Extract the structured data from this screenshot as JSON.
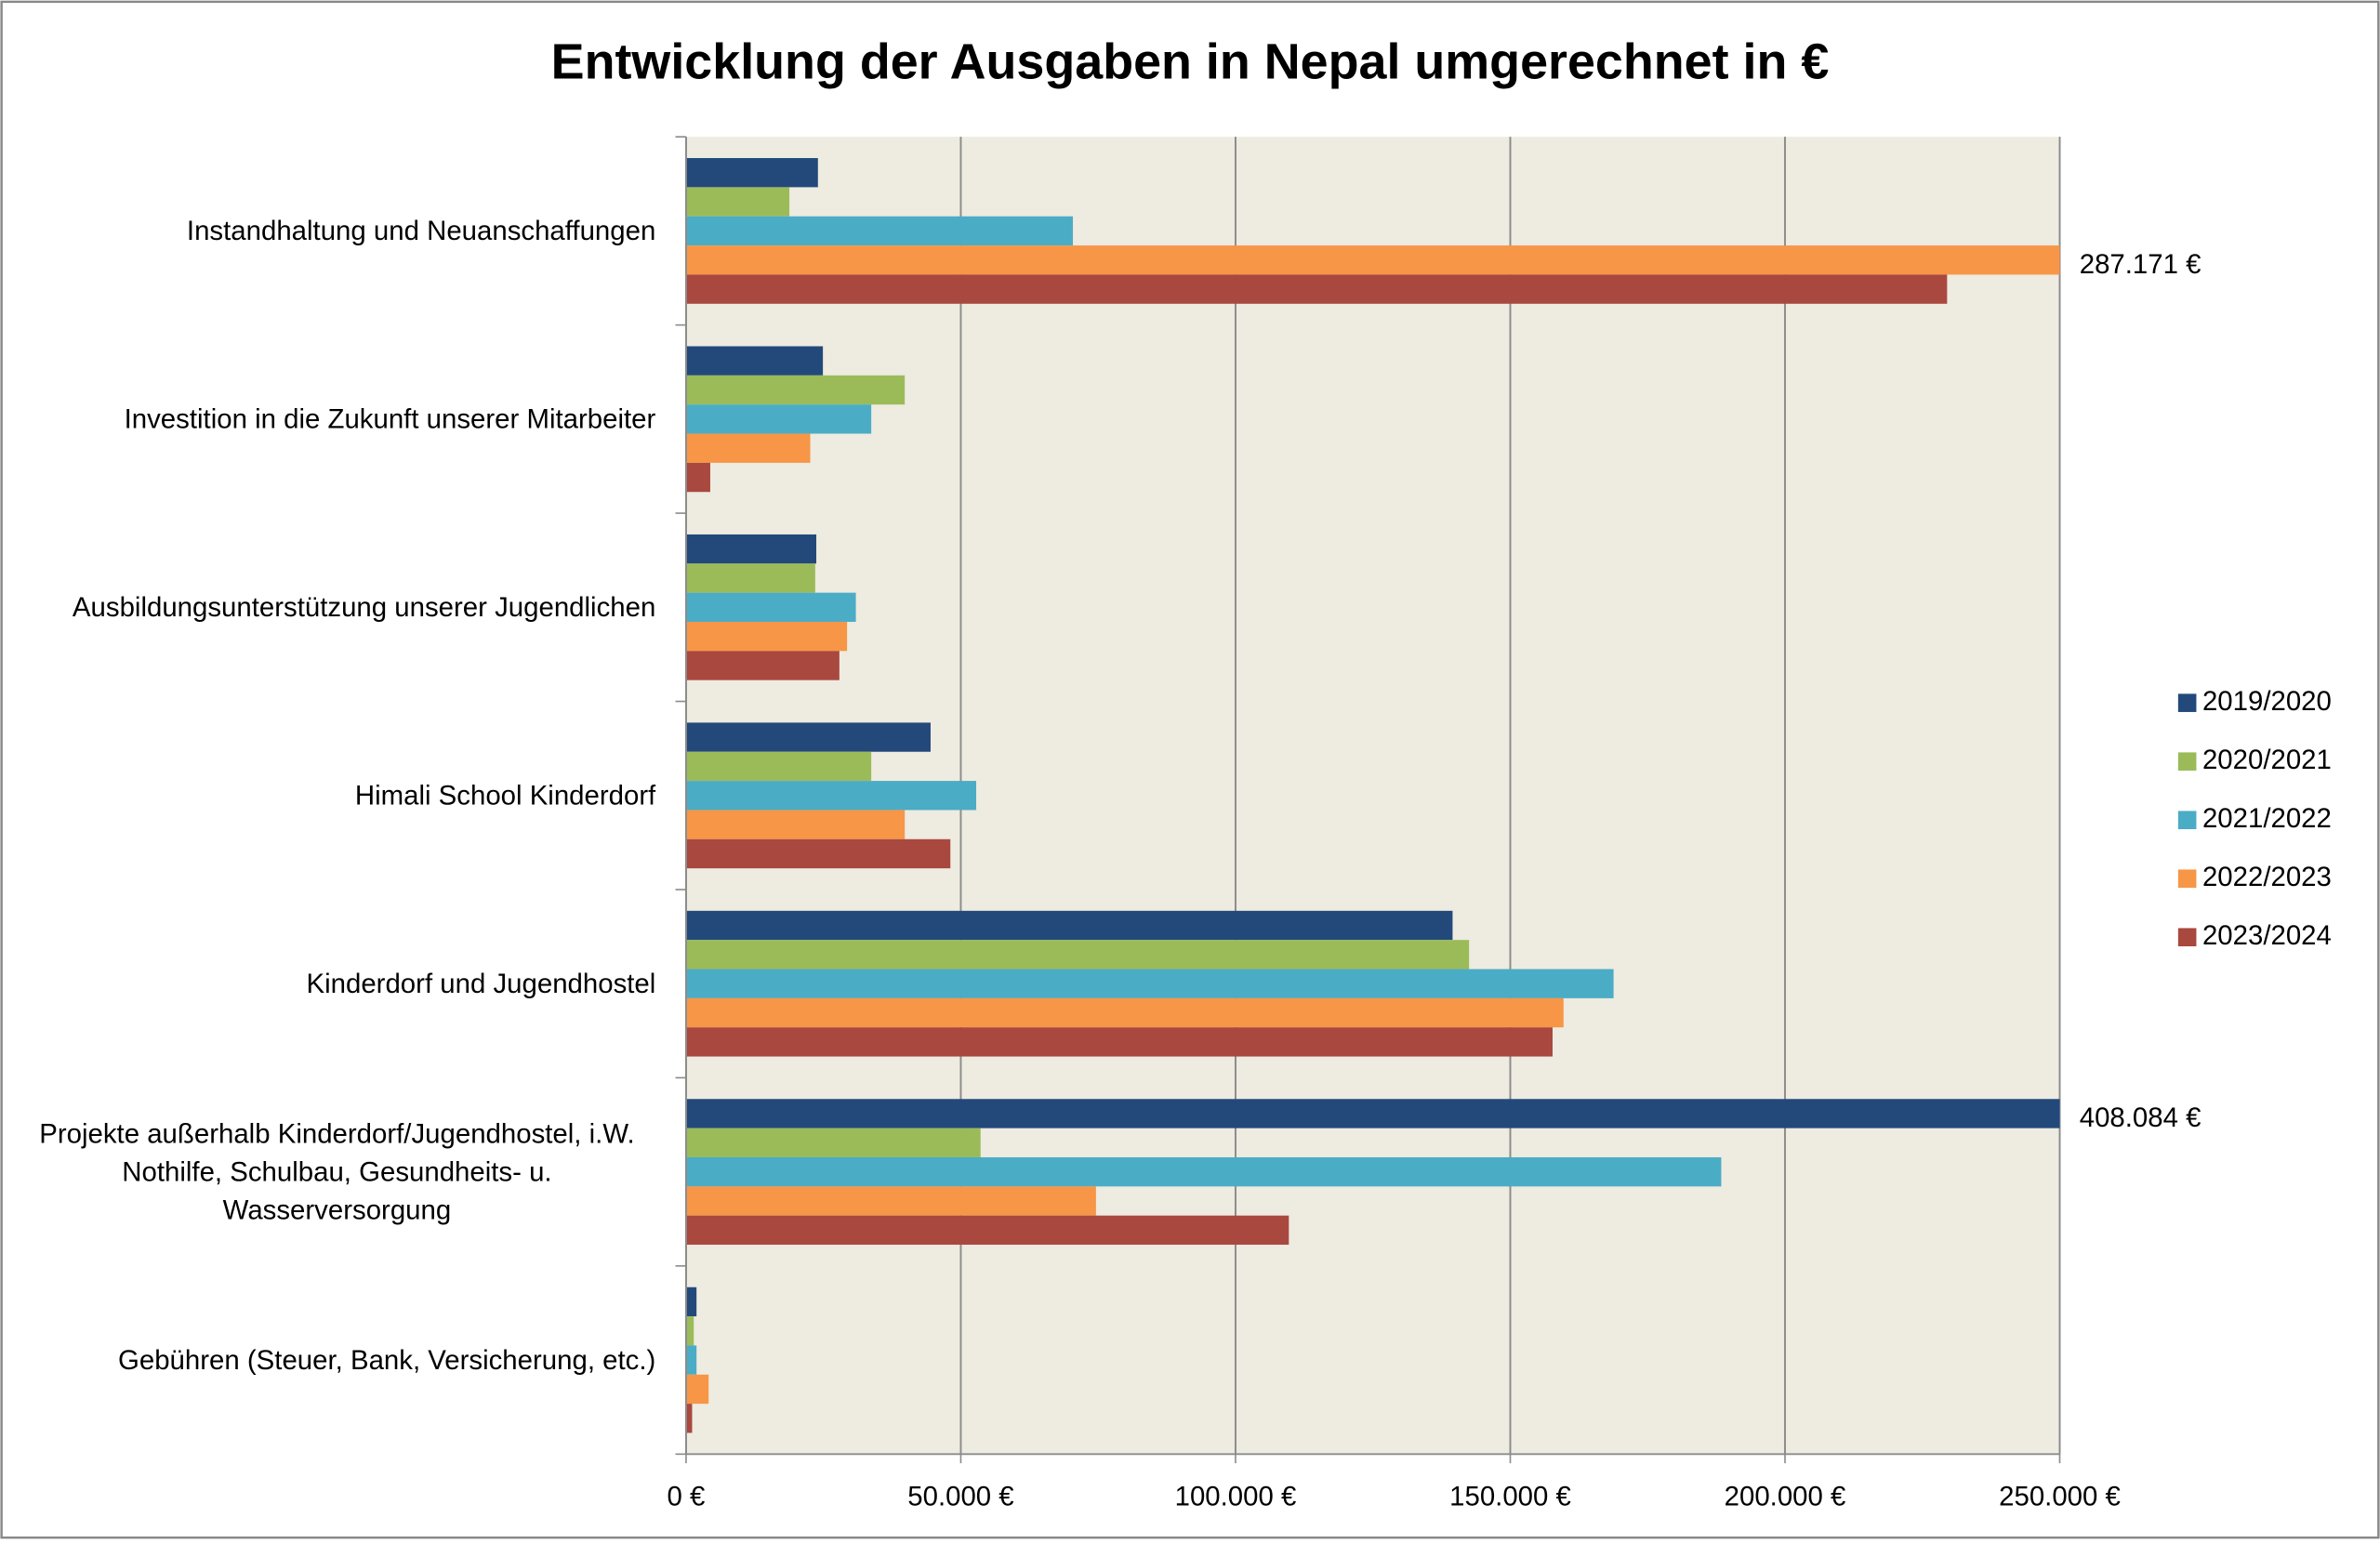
{
  "chart_data": {
    "type": "barh",
    "title": "Entwicklung der Ausgaben in Nepal umgerechnet in €",
    "categories": [
      "Instandhaltung und Neuanschaffungen",
      "Investition in die Zukunft unserer Mitarbeiter",
      "Ausbildungsunterstützung unserer Jugendlichen",
      "Himali School Kinderdorf",
      "Kinderdorf und Jugendhostel",
      "Projekte außerhalb Kinderdorf/Jugendhostel, i.W. Nothilfe, Schulbau, Gesundheits- u. Wasserversorgung",
      "Gebühren (Steuer, Bank, Versicherung, etc.)"
    ],
    "series": [
      {
        "name": "2019/2020",
        "color": "#23497b",
        "values": [
          24000,
          24900,
          23700,
          44500,
          139500,
          408084,
          1900
        ],
        "value_labels": [
          null,
          null,
          null,
          null,
          null,
          "408.084 €",
          null
        ]
      },
      {
        "name": "2020/2021",
        "color": "#9bbb59",
        "values": [
          18800,
          39800,
          23500,
          33700,
          142500,
          53600,
          1400
        ]
      },
      {
        "name": "2021/2022",
        "color": "#4bacc6",
        "values": [
          70400,
          33700,
          30900,
          52800,
          168800,
          188400,
          1900
        ]
      },
      {
        "name": "2022/2023",
        "color": "#f79646",
        "values": [
          287171,
          22600,
          29300,
          39800,
          159700,
          74600,
          4100
        ],
        "value_labels": [
          "287.171 €",
          null,
          null,
          null,
          null,
          null,
          null
        ]
      },
      {
        "name": "2023/2024",
        "color": "#a9483f",
        "values": [
          229500,
          4400,
          27900,
          48100,
          157700,
          109700,
          1100
        ]
      }
    ],
    "xlim": [
      0,
      250000
    ],
    "xticks": [
      {
        "value": 0,
        "label": "0 €"
      },
      {
        "value": 50000,
        "label": "50.000 €"
      },
      {
        "value": 100000,
        "label": "100.000 €"
      },
      {
        "value": 150000,
        "label": "150.000 €"
      },
      {
        "value": 200000,
        "label": "200.000 €"
      },
      {
        "value": 250000,
        "label": "250.000 €"
      }
    ],
    "grid": true,
    "legend": "right"
  }
}
